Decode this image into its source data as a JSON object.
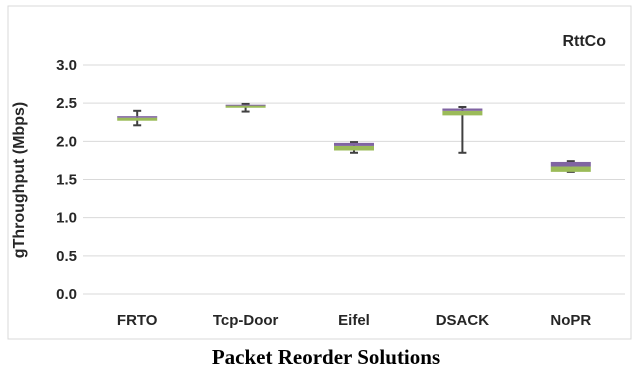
{
  "chart_data": {
    "type": "box",
    "title": "RttCo",
    "xlabel": "Packet Reorder Solutions",
    "ylabel": "gThroughput (Mbps)",
    "ylim": [
      0,
      3
    ],
    "yticks": [
      "0.0",
      "0.5",
      "1.0",
      "1.5",
      "2.0",
      "2.5",
      "3.0"
    ],
    "grid": "horizontal",
    "categories": [
      "FRTO",
      "Tcp-Door",
      "Eifel",
      "DSACK",
      "NoPR"
    ],
    "boxes": [
      {
        "min": 2.21,
        "q1": 2.27,
        "median": 2.31,
        "q3": 2.33,
        "max": 2.4
      },
      {
        "min": 2.39,
        "q1": 2.44,
        "median": 2.47,
        "q3": 2.48,
        "max": 2.49
      },
      {
        "min": 1.85,
        "q1": 1.88,
        "median": 1.94,
        "q3": 1.98,
        "max": 1.99
      },
      {
        "min": 1.85,
        "q1": 2.34,
        "median": 2.4,
        "q3": 2.43,
        "max": 2.45
      },
      {
        "min": 1.6,
        "q1": 1.6,
        "median": 1.67,
        "q3": 1.73,
        "max": 1.74
      }
    ],
    "colors": {
      "lower_box": "#9bbb59",
      "upper_box": "#8064a2",
      "whisker": "#404040",
      "grid": "#d9d9d9",
      "frame": "#d9d9d9"
    }
  }
}
